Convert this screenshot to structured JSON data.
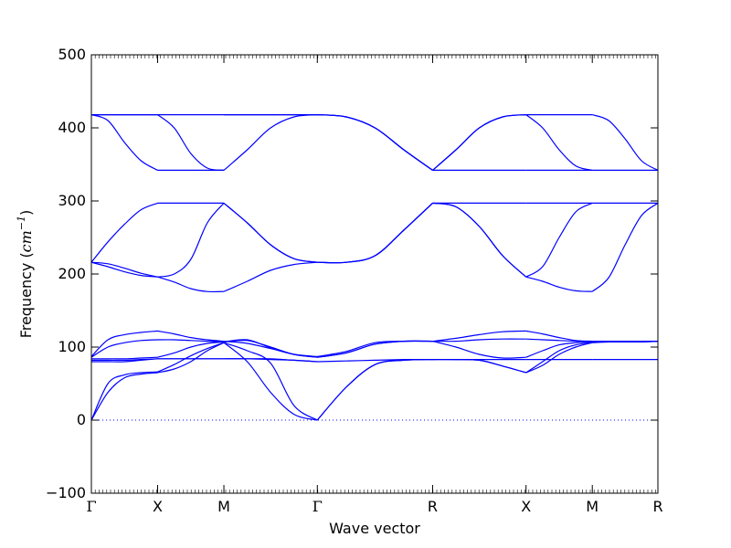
{
  "chart_data": {
    "type": "line",
    "xlabel": "Wave vector",
    "ylabel_prefix": "Frequency (",
    "ylabel_unit": "cm",
    "ylabel_exp": "−1",
    "ylabel_suffix": ")",
    "ylim": [
      -100,
      500
    ],
    "yticks": [
      -100,
      0,
      100,
      200,
      300,
      400,
      500
    ],
    "xlim": [
      0,
      8.55
    ],
    "high_symmetry_points": [
      {
        "label": "Γ",
        "x": 0
      },
      {
        "label": "X",
        "x": 1.0
      },
      {
        "label": "M",
        "x": 2.0
      },
      {
        "label": "Γ",
        "x": 3.41
      },
      {
        "label": "R",
        "x": 5.15
      },
      {
        "label": "X",
        "x": 6.56
      },
      {
        "label": "M",
        "x": 7.56
      },
      {
        "label": "R",
        "x": 8.55
      }
    ],
    "zero_line": {
      "y": 0,
      "style": "dotted"
    },
    "line_color": "#0000ff",
    "segment_samples": [
      0,
      0.25,
      0.5,
      0.75,
      1
    ],
    "segments": [
      {
        "from": 0,
        "to": 1,
        "bands": [
          [
            0,
            38,
            58,
            63,
            65
          ],
          [
            0,
            50,
            62,
            65,
            66
          ],
          [
            80,
            80,
            80,
            82,
            84
          ],
          [
            82,
            82,
            82,
            83,
            84
          ],
          [
            84,
            84,
            84,
            85,
            86
          ],
          [
            86,
            100,
            106,
            109,
            110
          ],
          [
            87,
            110,
            117,
            120,
            122
          ],
          [
            216,
            214,
            208,
            201,
            196
          ],
          [
            216,
            210,
            203,
            198,
            196
          ],
          [
            216,
            244,
            268,
            288,
            297
          ],
          [
            418,
            418,
            418,
            418,
            418
          ],
          [
            418,
            418,
            418,
            418,
            418
          ],
          [
            418,
            410,
            380,
            355,
            342
          ]
        ]
      },
      {
        "from": 1,
        "to": 2,
        "bands": [
          [
            65,
            70,
            80,
            95,
            106
          ],
          [
            66,
            76,
            88,
            98,
            106
          ],
          [
            84,
            84,
            84,
            84,
            84
          ],
          [
            84,
            84,
            84,
            84,
            84
          ],
          [
            86,
            92,
            100,
            105,
            107
          ],
          [
            110,
            110,
            109,
            108,
            107
          ],
          [
            122,
            118,
            113,
            110,
            108
          ],
          [
            196,
            200,
            220,
            270,
            297
          ],
          [
            196,
            189,
            180,
            176,
            176
          ],
          [
            297,
            297,
            297,
            297,
            297
          ],
          [
            342,
            342,
            342,
            342,
            342
          ],
          [
            418,
            418,
            418,
            418,
            418
          ],
          [
            418,
            400,
            365,
            345,
            342
          ]
        ]
      },
      {
        "from": 2,
        "to": 3.41,
        "bands": [
          [
            106,
            80,
            38,
            8,
            0
          ],
          [
            106,
            95,
            78,
            20,
            0
          ],
          [
            84,
            84,
            83,
            82,
            80
          ],
          [
            84,
            84,
            84,
            82,
            80
          ],
          [
            107,
            109,
            100,
            90,
            86
          ],
          [
            107,
            110,
            99,
            90,
            86
          ],
          [
            108,
            105,
            98,
            90,
            87
          ],
          [
            176,
            190,
            205,
            213,
            216
          ],
          [
            297,
            270,
            240,
            221,
            216
          ],
          [
            297,
            270,
            240,
            221,
            216
          ],
          [
            342,
            370,
            400,
            415,
            418
          ],
          [
            418,
            418,
            418,
            418,
            418
          ],
          [
            418,
            418,
            418,
            418,
            418
          ]
        ]
      },
      {
        "from": 3.41,
        "to": 5.15,
        "bands": [
          [
            0,
            45,
            76,
            82,
            83
          ],
          [
            0,
            45,
            76,
            82,
            83
          ],
          [
            80,
            81,
            82,
            83,
            83
          ],
          [
            86,
            92,
            104,
            108,
            108
          ],
          [
            86,
            92,
            104,
            108,
            108
          ],
          [
            87,
            94,
            106,
            108,
            108
          ],
          [
            216,
            216,
            225,
            260,
            297
          ],
          [
            216,
            216,
            225,
            260,
            297
          ],
          [
            216,
            216,
            225,
            260,
            297
          ],
          [
            418,
            415,
            400,
            370,
            342
          ],
          [
            418,
            415,
            400,
            370,
            342
          ],
          [
            418,
            415,
            400,
            370,
            342
          ]
        ]
      },
      {
        "from": 5.15,
        "to": 6.56,
        "bands": [
          [
            83,
            83,
            82,
            74,
            65
          ],
          [
            83,
            83,
            82,
            74,
            65
          ],
          [
            83,
            83,
            83,
            83,
            83
          ],
          [
            108,
            100,
            90,
            85,
            86
          ],
          [
            108,
            108,
            110,
            111,
            111
          ],
          [
            108,
            112,
            117,
            121,
            122
          ],
          [
            297,
            292,
            265,
            225,
            196
          ],
          [
            297,
            292,
            265,
            225,
            196
          ],
          [
            297,
            297,
            297,
            297,
            297
          ],
          [
            342,
            370,
            400,
            415,
            418
          ],
          [
            342,
            370,
            400,
            415,
            418
          ],
          [
            342,
            342,
            342,
            342,
            342
          ]
        ]
      },
      {
        "from": 6.56,
        "to": 7.56,
        "bands": [
          [
            65,
            75,
            90,
            100,
            106
          ],
          [
            65,
            80,
            95,
            103,
            106
          ],
          [
            83,
            83,
            83,
            83,
            83
          ],
          [
            86,
            95,
            103,
            106,
            107
          ],
          [
            111,
            110,
            109,
            108,
            107
          ],
          [
            122,
            118,
            113,
            109,
            108
          ],
          [
            196,
            190,
            182,
            177,
            176
          ],
          [
            196,
            210,
            250,
            285,
            297
          ],
          [
            297,
            297,
            297,
            297,
            297
          ],
          [
            342,
            342,
            342,
            342,
            342
          ],
          [
            418,
            418,
            418,
            418,
            418
          ],
          [
            418,
            400,
            370,
            348,
            342
          ]
        ]
      },
      {
        "from": 7.56,
        "to": 8.55,
        "bands": [
          [
            106,
            107,
            107,
            107,
            108
          ],
          [
            107,
            107,
            107,
            107,
            108
          ],
          [
            108,
            108,
            108,
            108,
            108
          ],
          [
            83,
            83,
            83,
            83,
            83
          ],
          [
            176,
            195,
            240,
            280,
            297
          ],
          [
            297,
            297,
            297,
            297,
            297
          ],
          [
            342,
            342,
            342,
            342,
            342
          ],
          [
            418,
            410,
            385,
            355,
            342
          ]
        ]
      }
    ]
  }
}
